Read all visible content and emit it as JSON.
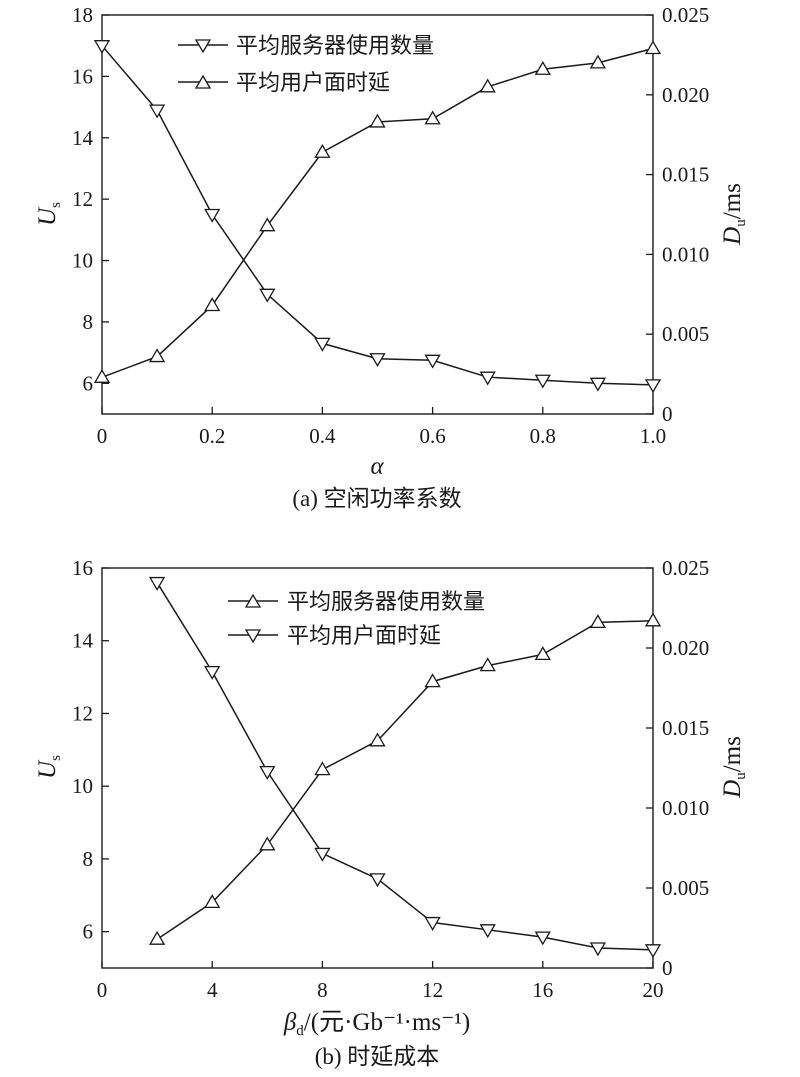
{
  "chart_data": [
    {
      "type": "line",
      "caption": "(a) 空闲功率系数",
      "xlabel": "α",
      "ylabel_left": {
        "main": "U",
        "sub": "s"
      },
      "ylabel_right": {
        "main": "D",
        "sub": "u",
        "suffix": "/ms"
      },
      "xlim": [
        0,
        1.0
      ],
      "ylim_left": [
        5,
        18
      ],
      "ylim_right": [
        0,
        0.025
      ],
      "x_ticks": [
        "0",
        "0.2",
        "0.4",
        "0.6",
        "0.8",
        "1.0"
      ],
      "y_left_ticks": [
        "6",
        "8",
        "10",
        "12",
        "14",
        "16",
        "18"
      ],
      "y_right_ticks": [
        "0",
        "0.005",
        "0.010",
        "0.015",
        "0.020",
        "0.025"
      ],
      "legend_position": "top-center",
      "x": [
        0,
        0.1,
        0.2,
        0.3,
        0.4,
        0.5,
        0.6,
        0.7,
        0.8,
        0.9,
        1.0
      ],
      "series": [
        {
          "name": "平均服务器使用数量",
          "marker": "triangle-down",
          "axis": "left",
          "values": [
            17.0,
            14.9,
            11.5,
            8.9,
            7.3,
            6.8,
            6.75,
            6.2,
            6.1,
            6.0,
            5.95
          ]
        },
        {
          "name": "平均用户面时延",
          "marker": "triangle-up",
          "axis": "right",
          "values": [
            0.0023,
            0.0036,
            0.0068,
            0.0118,
            0.0164,
            0.0183,
            0.0185,
            0.0205,
            0.0216,
            0.022,
            0.0229
          ]
        }
      ]
    },
    {
      "type": "line",
      "caption": "(b) 时延成本",
      "xlabel": {
        "main": "β",
        "sub": "d",
        "unit": "/(元·Gb⁻¹·ms⁻¹)"
      },
      "ylabel_left": {
        "main": "U",
        "sub": "s"
      },
      "ylabel_right": {
        "main": "D",
        "sub": "u",
        "suffix": "/ms"
      },
      "xlim": [
        0,
        20
      ],
      "ylim_left": [
        5,
        16
      ],
      "ylim_right": [
        0,
        0.025
      ],
      "x_ticks": [
        "0",
        "4",
        "8",
        "12",
        "16",
        "20"
      ],
      "y_left_ticks": [
        "6",
        "8",
        "10",
        "12",
        "14",
        "16"
      ],
      "y_right_ticks": [
        "0",
        "0.005",
        "0.010",
        "0.015",
        "0.020",
        "0.025"
      ],
      "legend_position": "top-center",
      "x": [
        2,
        4,
        6,
        8,
        10,
        12,
        14,
        16,
        18,
        20
      ],
      "series": [
        {
          "name": "平均服务器使用数量",
          "marker": "triangle-up",
          "axis": "right",
          "values": [
            0.0018,
            0.0041,
            0.0077,
            0.0124,
            0.0142,
            0.0179,
            0.0189,
            0.0196,
            0.0216,
            0.0217
          ]
        },
        {
          "name": "平均用户面时延",
          "marker": "triangle-down",
          "axis": "left",
          "values": [
            15.6,
            13.15,
            10.4,
            8.15,
            7.45,
            6.25,
            6.05,
            5.85,
            5.55,
            5.5
          ]
        }
      ]
    }
  ]
}
